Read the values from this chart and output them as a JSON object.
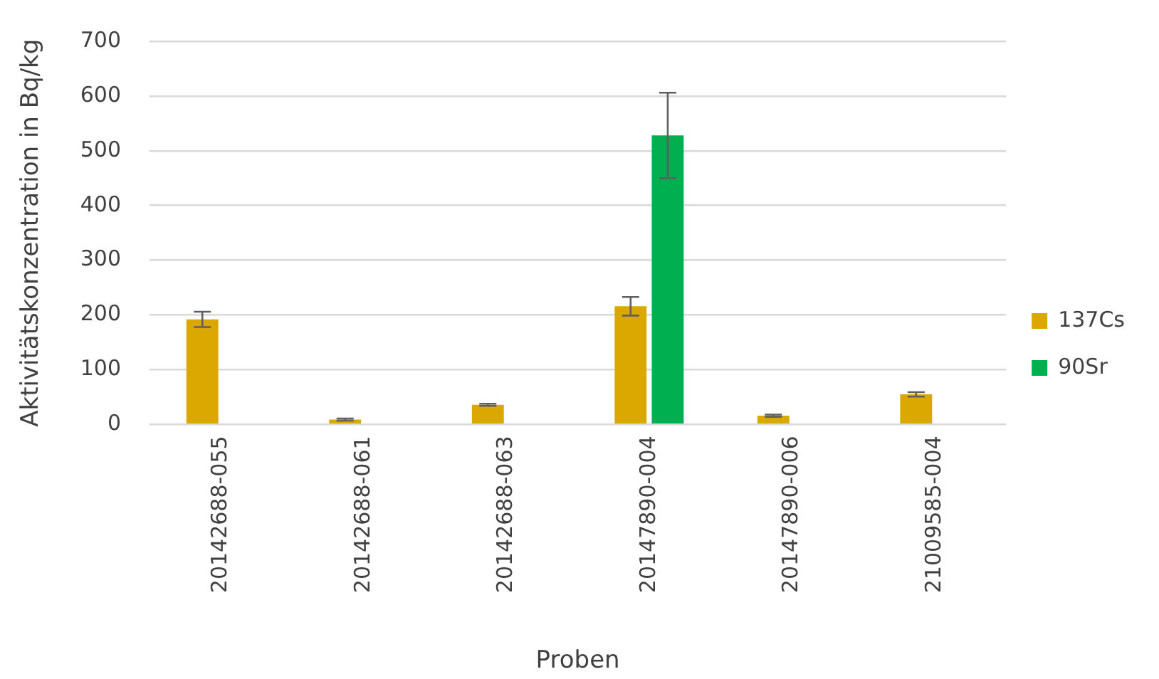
{
  "chart_data": {
    "type": "bar",
    "xlabel": "Proben",
    "ylabel": "Aktivitätskonzentration in Bq/kg",
    "categories": [
      "20142688-055",
      "20142688-061",
      "20142688-063",
      "20147890-004",
      "20147890-006",
      "21009585-004"
    ],
    "series": [
      {
        "name": "137Cs",
        "color": "#daa800",
        "values": [
          192,
          9,
          36,
          216,
          16,
          55
        ],
        "errors": [
          14,
          2,
          2,
          17,
          2,
          4
        ]
      },
      {
        "name": "90Sr",
        "color": "#00b050",
        "values": [
          null,
          null,
          null,
          528,
          null,
          null
        ],
        "errors": [
          null,
          null,
          null,
          78,
          null,
          null
        ]
      }
    ],
    "ylim": [
      0,
      700
    ],
    "yticks": [
      0,
      100,
      200,
      300,
      400,
      500,
      600,
      700
    ],
    "grid": "y",
    "legend": "right"
  }
}
